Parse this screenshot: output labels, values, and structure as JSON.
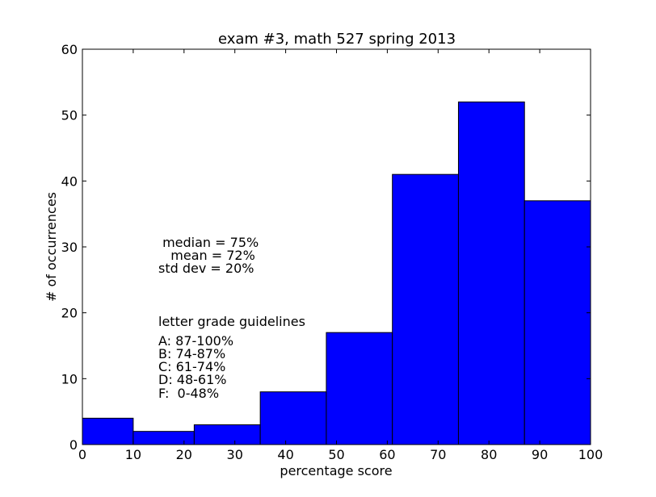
{
  "chart_data": {
    "type": "bar",
    "title": "exam #3, math 527 spring 2013",
    "xlabel": "percentage score",
    "ylabel": "# of occurrences",
    "xlim": [
      0,
      100
    ],
    "ylim": [
      0,
      60
    ],
    "xticks": [
      "0",
      "10",
      "20",
      "30",
      "40",
      "50",
      "60",
      "70",
      "80",
      "90",
      "100"
    ],
    "yticks": [
      "0",
      "10",
      "20",
      "30",
      "40",
      "50",
      "60"
    ],
    "bins": [
      {
        "start": 0,
        "end": 10,
        "count": 4
      },
      {
        "start": 10,
        "end": 22,
        "count": 2
      },
      {
        "start": 22,
        "end": 35,
        "count": 3
      },
      {
        "start": 35,
        "end": 48,
        "count": 8
      },
      {
        "start": 48,
        "end": 61,
        "count": 17
      },
      {
        "start": 61,
        "end": 74,
        "count": 41
      },
      {
        "start": 74,
        "end": 87,
        "count": 52
      },
      {
        "start": 87,
        "end": 100,
        "count": 37
      }
    ],
    "bar_color": "#0000ff",
    "grid": false
  },
  "annotations": {
    "stats": [
      " median = 75%",
      "   mean = 72%",
      "std dev = 20%"
    ],
    "guidelines_title": "letter grade guidelines",
    "guidelines": [
      "A: 87-100%",
      "B: 74-87%",
      "C: 61-74%",
      "D: 48-61%",
      "F:  0-48%"
    ]
  }
}
